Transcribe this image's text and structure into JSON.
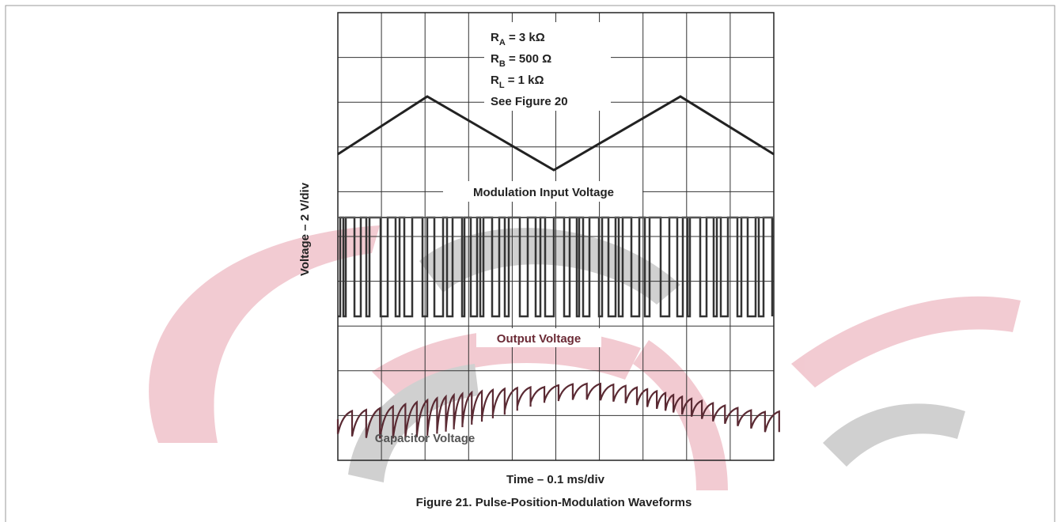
{
  "figure": {
    "conditions": [
      {
        "symbol": "R",
        "sub": "A",
        "value": " = 3 kΩ"
      },
      {
        "symbol": "R",
        "sub": "B",
        "value": " = 500 Ω"
      },
      {
        "symbol": "R",
        "sub": "L",
        "value": " = 1 kΩ"
      },
      {
        "text": "See Figure 20"
      }
    ],
    "traces": [
      "Modulation Input Voltage",
      "Output Voltage",
      "Capacitor Voltage"
    ],
    "y_axis_label": "Voltage – 2 V/div",
    "x_axis_label": "Time – 0.1 ms/div",
    "caption": "Figure 21. Pulse-Position-Modulation Waveforms"
  }
}
